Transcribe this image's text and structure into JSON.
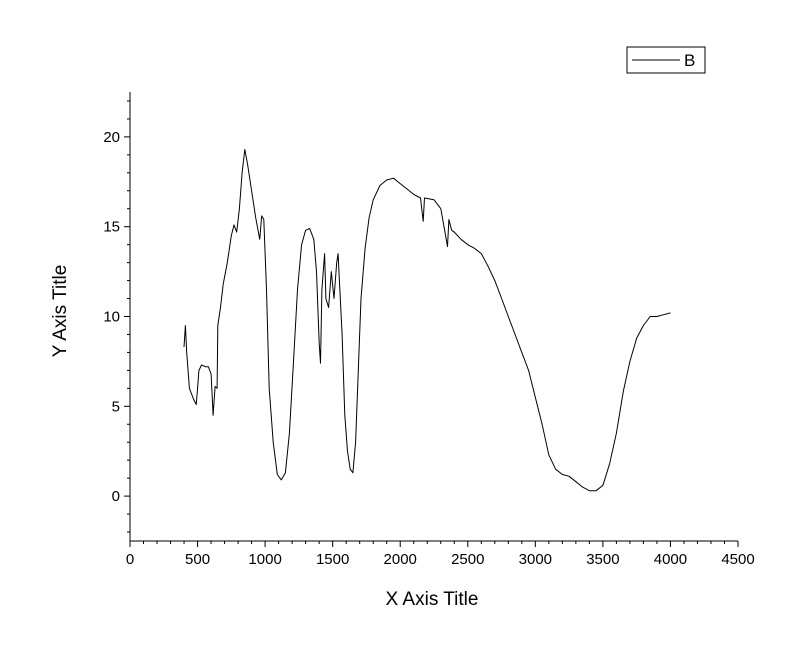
{
  "chart_data": {
    "type": "line",
    "xlabel": "X Axis Title",
    "ylabel": "Y Axis Title",
    "xlim": [
      0,
      4500
    ],
    "ylim": [
      -2.5,
      22.5
    ],
    "x_ticks": [
      "0",
      "500",
      "1000",
      "1500",
      "2000",
      "2500",
      "3000",
      "3500",
      "4000",
      "4500"
    ],
    "y_ticks": [
      "0",
      "5",
      "10",
      "15",
      "20"
    ],
    "grid": false,
    "legend": "top-right",
    "series": [
      {
        "name": "B",
        "color": "#000000",
        "points": [
          [
            400,
            8.3
          ],
          [
            410,
            9.5
          ],
          [
            420,
            8.0
          ],
          [
            440,
            6.0
          ],
          [
            470,
            5.4
          ],
          [
            490,
            5.1
          ],
          [
            500,
            6.0
          ],
          [
            510,
            7.0
          ],
          [
            530,
            7.3
          ],
          [
            560,
            7.2
          ],
          [
            580,
            7.2
          ],
          [
            600,
            6.8
          ],
          [
            615,
            4.5
          ],
          [
            630,
            6.1
          ],
          [
            645,
            6.0
          ],
          [
            650,
            9.5
          ],
          [
            670,
            10.5
          ],
          [
            690,
            11.8
          ],
          [
            720,
            13.0
          ],
          [
            750,
            14.5
          ],
          [
            770,
            15.1
          ],
          [
            790,
            14.7
          ],
          [
            810,
            16.0
          ],
          [
            830,
            18.0
          ],
          [
            850,
            19.3
          ],
          [
            870,
            18.5
          ],
          [
            900,
            17.0
          ],
          [
            930,
            15.5
          ],
          [
            960,
            14.3
          ],
          [
            975,
            15.6
          ],
          [
            990,
            15.4
          ],
          [
            1010,
            11.5
          ],
          [
            1030,
            6.0
          ],
          [
            1060,
            3.0
          ],
          [
            1090,
            1.2
          ],
          [
            1120,
            0.9
          ],
          [
            1150,
            1.3
          ],
          [
            1180,
            3.5
          ],
          [
            1210,
            7.5
          ],
          [
            1240,
            11.5
          ],
          [
            1270,
            14.0
          ],
          [
            1300,
            14.8
          ],
          [
            1330,
            14.9
          ],
          [
            1360,
            14.3
          ],
          [
            1380,
            12.5
          ],
          [
            1400,
            8.5
          ],
          [
            1410,
            7.4
          ],
          [
            1420,
            11.5
          ],
          [
            1440,
            13.5
          ],
          [
            1450,
            11.0
          ],
          [
            1470,
            10.5
          ],
          [
            1490,
            12.5
          ],
          [
            1510,
            11.0
          ],
          [
            1530,
            13.0
          ],
          [
            1540,
            13.5
          ],
          [
            1550,
            12.0
          ],
          [
            1570,
            9.0
          ],
          [
            1590,
            4.5
          ],
          [
            1610,
            2.5
          ],
          [
            1630,
            1.5
          ],
          [
            1650,
            1.3
          ],
          [
            1670,
            3.0
          ],
          [
            1690,
            7.0
          ],
          [
            1710,
            11.0
          ],
          [
            1740,
            13.8
          ],
          [
            1770,
            15.5
          ],
          [
            1800,
            16.5
          ],
          [
            1850,
            17.3
          ],
          [
            1900,
            17.6
          ],
          [
            1950,
            17.7
          ],
          [
            2000,
            17.4
          ],
          [
            2050,
            17.1
          ],
          [
            2100,
            16.8
          ],
          [
            2150,
            16.6
          ],
          [
            2170,
            15.3
          ],
          [
            2180,
            16.6
          ],
          [
            2250,
            16.5
          ],
          [
            2300,
            16.0
          ],
          [
            2350,
            13.9
          ],
          [
            2360,
            15.4
          ],
          [
            2380,
            14.8
          ],
          [
            2400,
            14.7
          ],
          [
            2450,
            14.3
          ],
          [
            2500,
            14.0
          ],
          [
            2550,
            13.8
          ],
          [
            2600,
            13.5
          ],
          [
            2650,
            12.8
          ],
          [
            2700,
            12.0
          ],
          [
            2750,
            11.0
          ],
          [
            2800,
            10.0
          ],
          [
            2850,
            9.0
          ],
          [
            2900,
            8.0
          ],
          [
            2950,
            7.0
          ],
          [
            3000,
            5.5
          ],
          [
            3050,
            4.0
          ],
          [
            3100,
            2.3
          ],
          [
            3150,
            1.5
          ],
          [
            3200,
            1.2
          ],
          [
            3250,
            1.1
          ],
          [
            3300,
            0.8
          ],
          [
            3350,
            0.5
          ],
          [
            3400,
            0.3
          ],
          [
            3450,
            0.3
          ],
          [
            3500,
            0.6
          ],
          [
            3550,
            1.8
          ],
          [
            3600,
            3.5
          ],
          [
            3650,
            5.8
          ],
          [
            3700,
            7.5
          ],
          [
            3750,
            8.8
          ],
          [
            3800,
            9.5
          ],
          [
            3850,
            10.0
          ],
          [
            3900,
            10.0
          ],
          [
            3950,
            10.1
          ],
          [
            4000,
            10.2
          ]
        ]
      }
    ]
  }
}
